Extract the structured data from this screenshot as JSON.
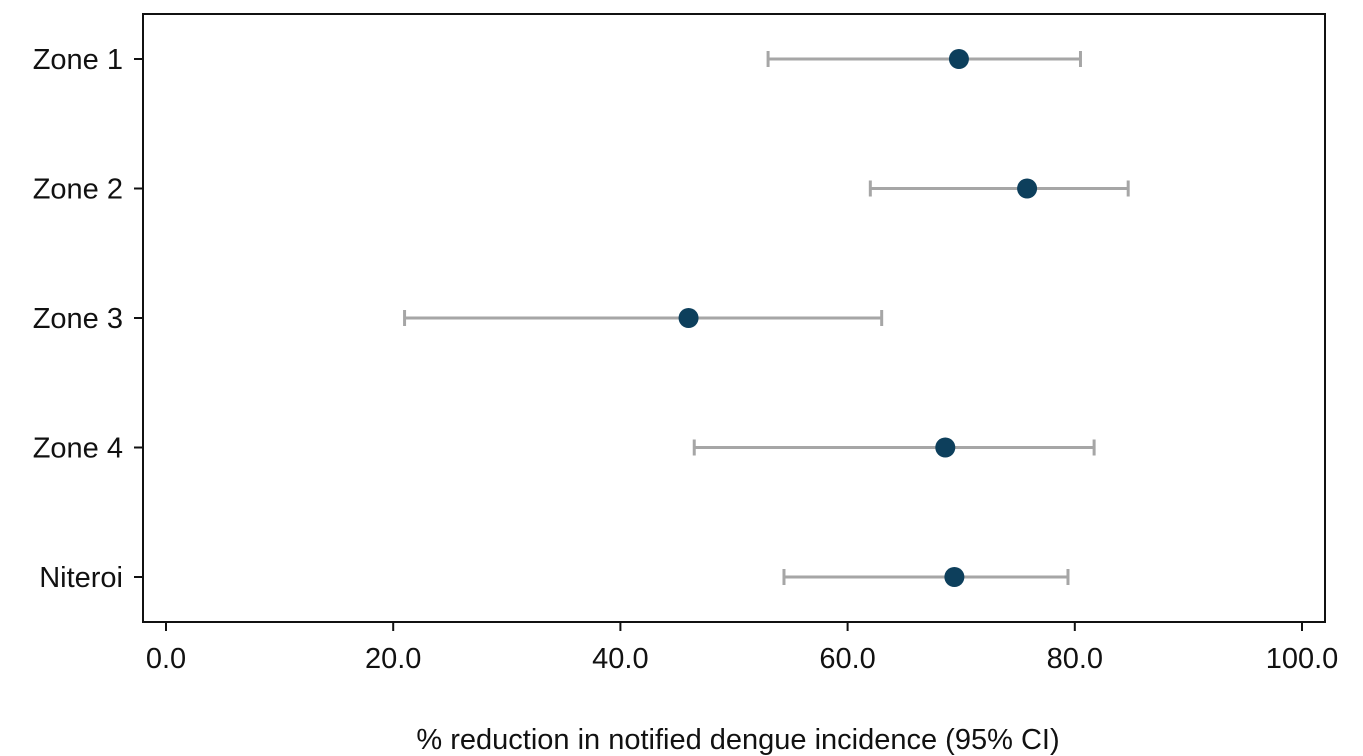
{
  "chart_data": {
    "type": "scatter",
    "subtype": "forest-plot",
    "title": "",
    "xlabel": "% reduction in notified dengue incidence (95% CI)",
    "ylabel": "",
    "xlim": [
      0,
      100
    ],
    "x_ticks": [
      "0.0",
      "20.0",
      "40.0",
      "60.0",
      "80.0",
      "100.0"
    ],
    "x_tick_values": [
      0,
      20,
      40,
      60,
      80,
      100
    ],
    "grid": false,
    "legend": "none",
    "categories": [
      "Zone 1",
      "Zone 2",
      "Zone 3",
      "Zone 4",
      "Niteroi"
    ],
    "series": [
      {
        "estimates": [
          69.8,
          75.8,
          46.0,
          68.6,
          69.4
        ],
        "ci_lower": [
          53.0,
          62.0,
          21.0,
          46.5,
          54.4
        ],
        "ci_upper": [
          80.5,
          84.7,
          63.0,
          81.7,
          79.4
        ]
      }
    ],
    "colors": {
      "point": "#0d3f5c",
      "ci_line": "#a6a6a6",
      "axis": "#111111"
    }
  }
}
